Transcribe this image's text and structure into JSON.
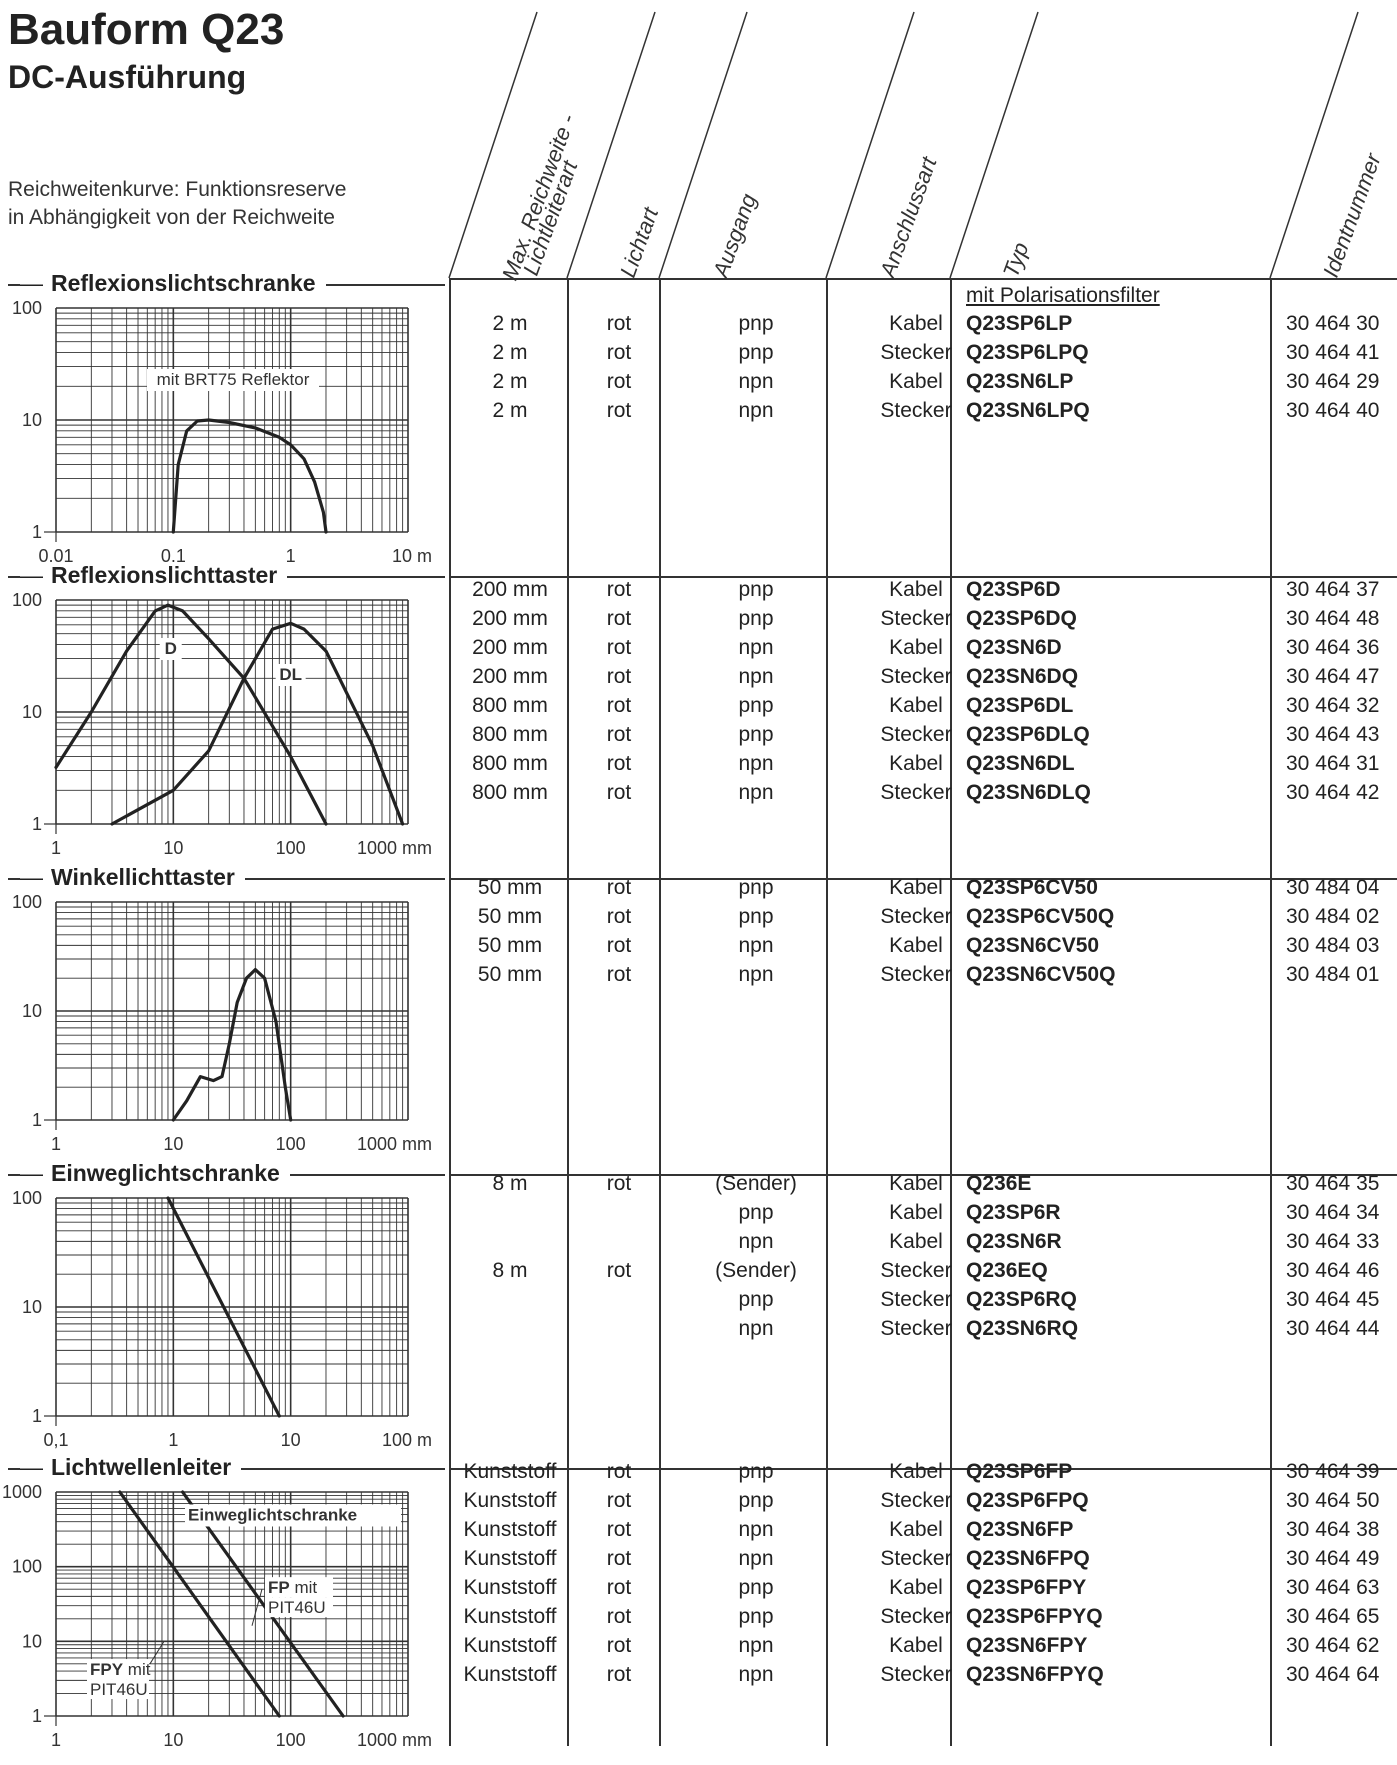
{
  "title": "Bauform Q23",
  "subtitle": "DC-Ausführung",
  "intro": [
    "Reichweitenkurve: Funktionsreserve",
    "in Abhängigkeit von der Reichweite"
  ],
  "columns": {
    "reach": [
      "Max. Reichweite -",
      "Lichtleiterart"
    ],
    "light": "Lichtart",
    "output": "Ausgang",
    "connection": "Anschlussart",
    "type": "Typ",
    "id": "Identnummer"
  },
  "sections": [
    {
      "name": "Reflexionslichtschranke",
      "note": "mit Polarisationsfilter",
      "rows": [
        [
          "2 m",
          "rot",
          "pnp",
          "Kabel",
          "Q23SP6LP",
          "30 464 30"
        ],
        [
          "2 m",
          "rot",
          "pnp",
          "Stecker",
          "Q23SP6LPQ",
          "30 464 41"
        ],
        [
          "2 m",
          "rot",
          "npn",
          "Kabel",
          "Q23SN6LP",
          "30 464 29"
        ],
        [
          "2 m",
          "rot",
          "npn",
          "Stecker",
          "Q23SN6LPQ",
          "30 464 40"
        ]
      ]
    },
    {
      "name": "Reflexionslichttaster",
      "note": "",
      "rows": [
        [
          "200 mm",
          "rot",
          "pnp",
          "Kabel",
          "Q23SP6D",
          "30 464 37"
        ],
        [
          "200 mm",
          "rot",
          "pnp",
          "Stecker",
          "Q23SP6DQ",
          "30 464 48"
        ],
        [
          "200 mm",
          "rot",
          "npn",
          "Kabel",
          "Q23SN6D",
          "30 464 36"
        ],
        [
          "200 mm",
          "rot",
          "npn",
          "Stecker",
          "Q23SN6DQ",
          "30 464 47"
        ],
        [
          "800 mm",
          "rot",
          "pnp",
          "Kabel",
          "Q23SP6DL",
          "30 464 32"
        ],
        [
          "800 mm",
          "rot",
          "pnp",
          "Stecker",
          "Q23SP6DLQ",
          "30 464 43"
        ],
        [
          "800 mm",
          "rot",
          "npn",
          "Kabel",
          "Q23SN6DL",
          "30 464 31"
        ],
        [
          "800 mm",
          "rot",
          "npn",
          "Stecker",
          "Q23SN6DLQ",
          "30 464 42"
        ]
      ]
    },
    {
      "name": "Winkellichttaster",
      "note": "",
      "rows": [
        [
          "50 mm",
          "rot",
          "pnp",
          "Kabel",
          "Q23SP6CV50",
          "30 484 04"
        ],
        [
          "50 mm",
          "rot",
          "pnp",
          "Stecker",
          "Q23SP6CV50Q",
          "30 484 02"
        ],
        [
          "50 mm",
          "rot",
          "npn",
          "Kabel",
          "Q23SN6CV50",
          "30 484 03"
        ],
        [
          "50 mm",
          "rot",
          "npn",
          "Stecker",
          "Q23SN6CV50Q",
          "30 484 01"
        ]
      ]
    },
    {
      "name": "Einweglichtschranke",
      "note": "",
      "rows": [
        [
          "8 m",
          "rot",
          "(Sender)",
          "Kabel",
          "Q236E",
          "30 464 35"
        ],
        [
          "",
          "",
          "pnp",
          "Kabel",
          "Q23SP6R",
          "30 464 34"
        ],
        [
          "",
          "",
          "npn",
          "Kabel",
          "Q23SN6R",
          "30 464 33"
        ],
        [
          "8 m",
          "rot",
          "(Sender)",
          "Stecker",
          "Q236EQ",
          "30 464 46"
        ],
        [
          "",
          "",
          "pnp",
          "Stecker",
          "Q23SP6RQ",
          "30 464 45"
        ],
        [
          "",
          "",
          "npn",
          "Stecker",
          "Q23SN6RQ",
          "30 464 44"
        ]
      ]
    },
    {
      "name": "Lichtwellenleiter",
      "note": "",
      "rows": [
        [
          "Kunststoff",
          "rot",
          "pnp",
          "Kabel",
          "Q23SP6FP",
          "30 464 39"
        ],
        [
          "Kunststoff",
          "rot",
          "pnp",
          "Stecker",
          "Q23SP6FPQ",
          "30 464 50"
        ],
        [
          "Kunststoff",
          "rot",
          "npn",
          "Kabel",
          "Q23SN6FP",
          "30 464 38"
        ],
        [
          "Kunststoff",
          "rot",
          "npn",
          "Stecker",
          "Q23SN6FPQ",
          "30 464 49"
        ],
        [
          "Kunststoff",
          "rot",
          "pnp",
          "Kabel",
          "Q23SP6FPY",
          "30 464 63"
        ],
        [
          "Kunststoff",
          "rot",
          "pnp",
          "Stecker",
          "Q23SP6FPYQ",
          "30 464 65"
        ],
        [
          "Kunststoff",
          "rot",
          "npn",
          "Kabel",
          "Q23SN6FPY",
          "30 464 62"
        ],
        [
          "Kunststoff",
          "rot",
          "npn",
          "Stecker",
          "Q23SN6FPYQ",
          "30 464 64"
        ]
      ]
    }
  ],
  "chart_data": [
    {
      "type": "line",
      "xscale": "log",
      "yscale": "log",
      "xlim": [
        0.01,
        10
      ],
      "ylim": [
        1,
        100
      ],
      "xticks": [
        "0,01",
        "0,1",
        "1",
        "10 m"
      ],
      "yticks": [
        "1",
        "10",
        "100"
      ],
      "annotations": [
        "mit BRT75 Reflektor"
      ],
      "series": [
        {
          "x": [
            0.1,
            0.11,
            0.13,
            0.16,
            0.2,
            0.3,
            0.5,
            0.8,
            1.0,
            1.3,
            1.6,
            1.9,
            2.0
          ],
          "y": [
            1,
            4,
            8,
            9.8,
            10,
            9.5,
            8.5,
            7,
            6,
            4.5,
            2.8,
            1.5,
            1
          ]
        }
      ]
    },
    {
      "type": "line",
      "xscale": "log",
      "yscale": "log",
      "xlim": [
        1,
        1000
      ],
      "ylim": [
        1,
        100
      ],
      "xticks": [
        "1",
        "10",
        "100",
        "1000 mm"
      ],
      "yticks": [
        "1",
        "10",
        "100"
      ],
      "series": [
        {
          "name": "D",
          "x": [
            1,
            2,
            4,
            7,
            9,
            12,
            20,
            40,
            100,
            200
          ],
          "y": [
            3.2,
            10,
            35,
            80,
            90,
            80,
            45,
            20,
            4,
            1
          ]
        },
        {
          "name": "DL",
          "x": [
            3,
            10,
            20,
            40,
            70,
            100,
            130,
            200,
            500,
            900
          ],
          "y": [
            1,
            2,
            4.5,
            20,
            55,
            62,
            55,
            35,
            5,
            1
          ]
        }
      ]
    },
    {
      "type": "line",
      "xscale": "log",
      "yscale": "log",
      "xlim": [
        1,
        1000
      ],
      "ylim": [
        1,
        100
      ],
      "xticks": [
        "1",
        "10",
        "100",
        "1000 mm"
      ],
      "yticks": [
        "1",
        "10",
        "100"
      ],
      "series": [
        {
          "x": [
            10,
            13,
            17,
            22,
            26,
            30,
            35,
            42,
            50,
            60,
            75,
            90,
            100
          ],
          "y": [
            1,
            1.5,
            2.5,
            2.3,
            2.5,
            5,
            12,
            20,
            24,
            20,
            8,
            2,
            1
          ]
        }
      ]
    },
    {
      "type": "line",
      "xscale": "log",
      "yscale": "log",
      "xlim": [
        0.1,
        100
      ],
      "ylim": [
        1,
        100
      ],
      "xticks": [
        "0,1",
        "1",
        "10",
        "100 m"
      ],
      "yticks": [
        "1",
        "10",
        "100"
      ],
      "series": [
        {
          "x": [
            0.9,
            8
          ],
          "y": [
            100,
            1
          ]
        }
      ]
    },
    {
      "type": "line",
      "xscale": "log",
      "yscale": "log",
      "xlim": [
        1,
        1000
      ],
      "ylim": [
        1,
        1000
      ],
      "xticks": [
        "1",
        "10",
        "100",
        "1000 mm"
      ],
      "yticks": [
        "1",
        "10",
        "100",
        "1000"
      ],
      "annotations": [
        "Einweglichtschranke",
        "FP mit PIT46U",
        "FPY mit PIT46U"
      ],
      "series": [
        {
          "name": "FPY mit PIT46U",
          "x": [
            3.5,
            80
          ],
          "y": [
            1000,
            1
          ]
        },
        {
          "name": "FP mit PIT46U",
          "x": [
            12,
            280
          ],
          "y": [
            1000,
            1
          ]
        }
      ]
    }
  ]
}
